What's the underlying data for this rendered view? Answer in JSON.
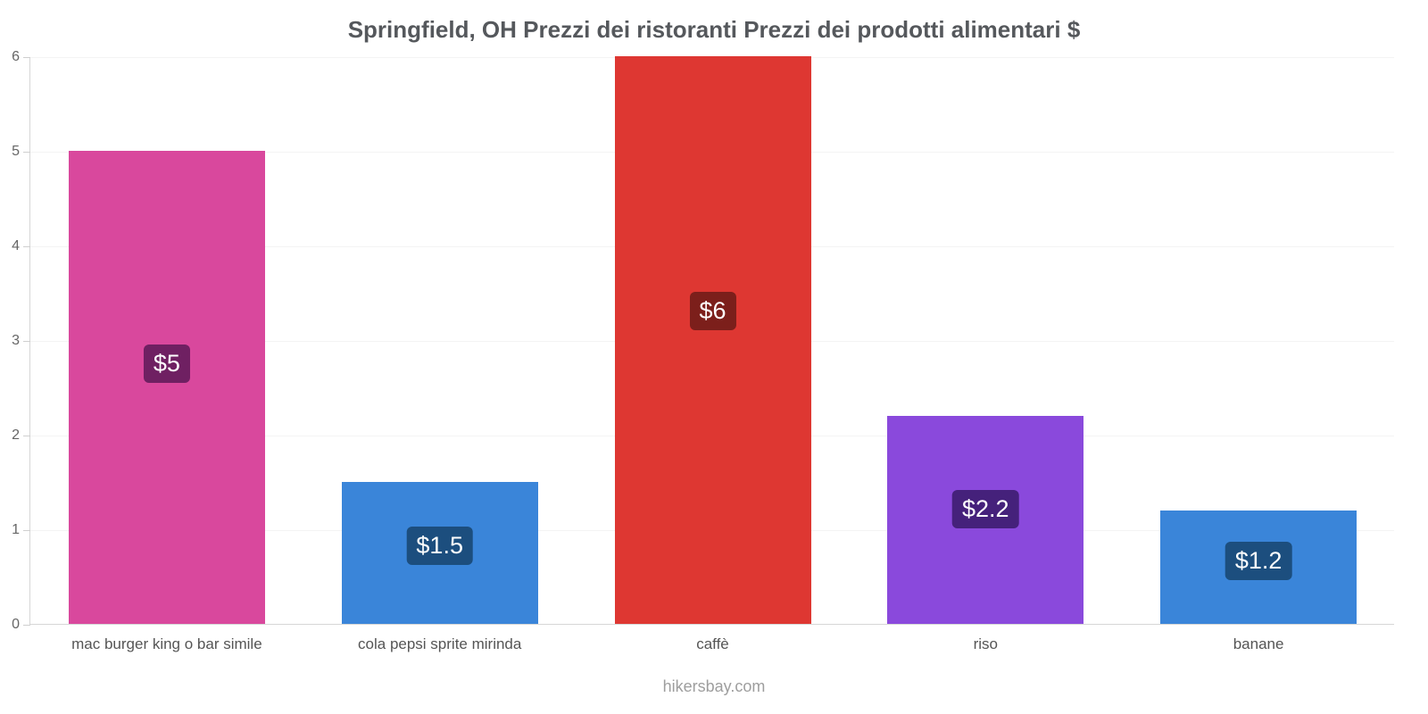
{
  "chart_data": {
    "type": "bar",
    "title": "Springfield, OH Prezzi dei ristoranti Prezzi dei prodotti alimentari $",
    "categories": [
      "mac burger king o bar simile",
      "cola pepsi sprite mirinda",
      "caffè",
      "riso",
      "banane"
    ],
    "values": [
      5,
      1.5,
      6,
      2.2,
      1.2
    ],
    "value_labels": [
      "$5",
      "$1.5",
      "$6",
      "$2.2",
      "$1.2"
    ],
    "bar_colors": [
      "#d9489d",
      "#3a85d9",
      "#de3732",
      "#8a49dc",
      "#3a85d9"
    ],
    "label_bg_colors": [
      "#6f2062",
      "#1c4e7e",
      "#7c1f1b",
      "#45217b",
      "#1c4e7e"
    ],
    "xlabel": "",
    "ylabel": "",
    "ylim": [
      0,
      6
    ],
    "yticks": [
      0,
      1,
      2,
      3,
      4,
      5,
      6
    ],
    "grid": true,
    "legend": false
  },
  "footer": {
    "text": "hikersbay.com"
  },
  "style_colors": {
    "title": "#55585c",
    "axis": "#d6d6d6",
    "grid": "#f4f4f4",
    "tick_label": "#666666",
    "category_label": "#555555",
    "footer": "#9e9e9e"
  }
}
